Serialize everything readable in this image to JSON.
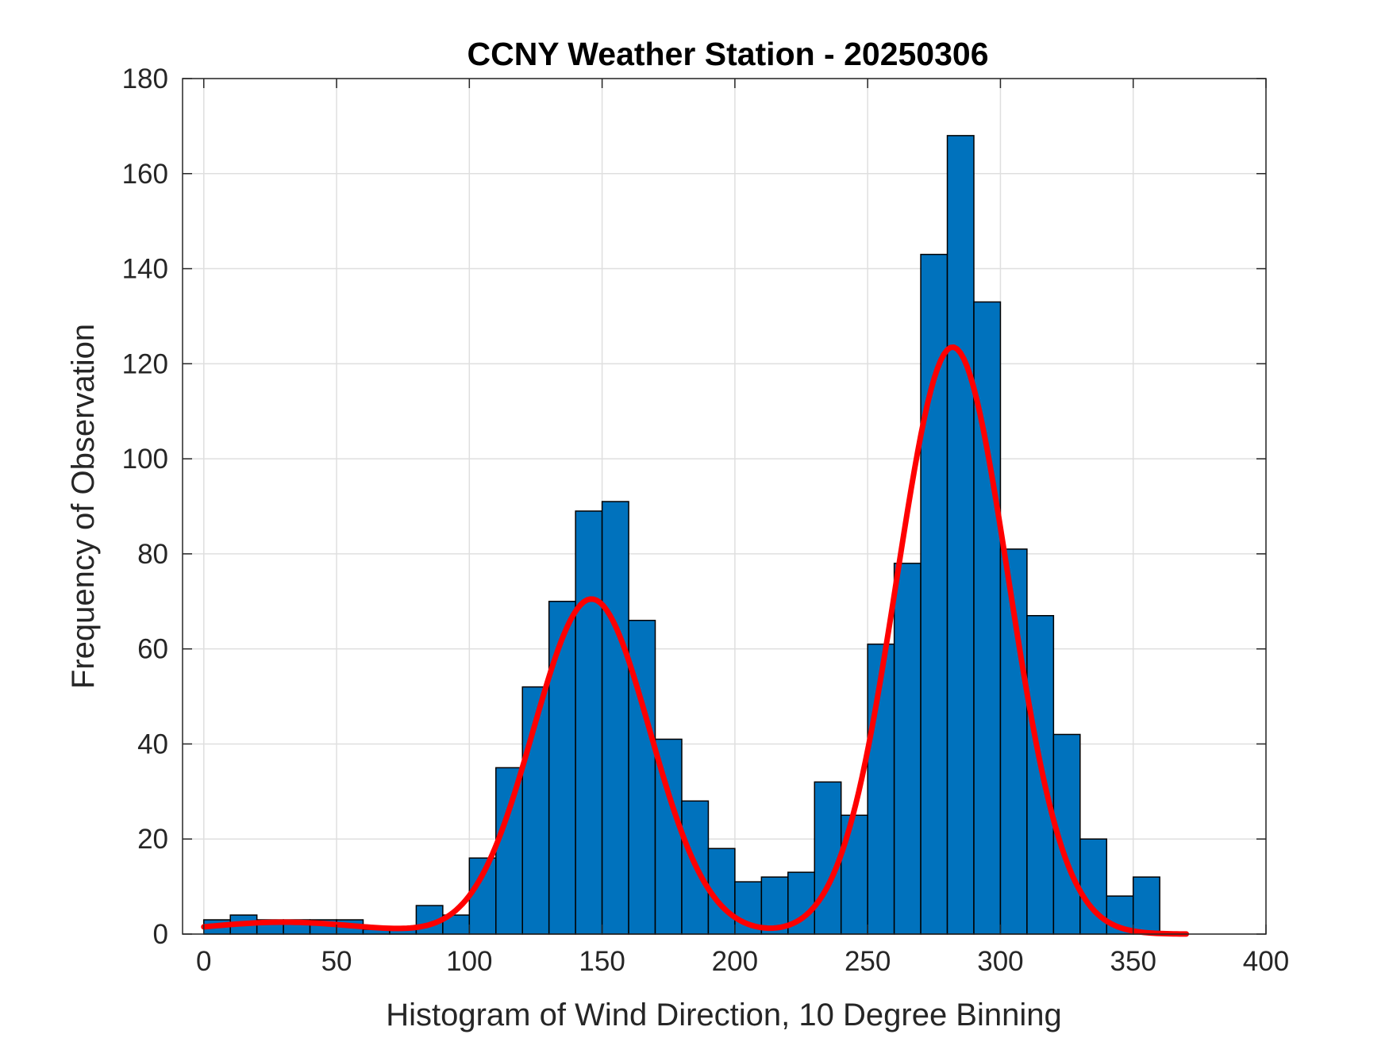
{
  "chart_data": {
    "type": "bar",
    "title": "CCNY Weather Station - 20250306",
    "xlabel": "Histogram of Wind Direction, 10 Degree Binning",
    "ylabel": "Frequency of Observation",
    "xlim": [
      -8,
      400
    ],
    "ylim": [
      0,
      180
    ],
    "x_ticks": [
      0,
      50,
      100,
      150,
      200,
      250,
      300,
      350,
      400
    ],
    "y_ticks": [
      0,
      20,
      40,
      60,
      80,
      100,
      120,
      140,
      160,
      180
    ],
    "grid": true,
    "bin_width": 10,
    "bin_edges_start": [
      0,
      10,
      20,
      30,
      40,
      50,
      60,
      70,
      80,
      90,
      100,
      110,
      120,
      130,
      140,
      150,
      160,
      170,
      180,
      190,
      200,
      210,
      220,
      230,
      240,
      250,
      260,
      270,
      280,
      290,
      300,
      310,
      320,
      330,
      340,
      350
    ],
    "values": [
      3,
      4,
      3,
      3,
      3,
      3,
      1,
      1,
      6,
      4,
      16,
      35,
      52,
      70,
      89,
      91,
      66,
      41,
      28,
      18,
      11,
      12,
      13,
      32,
      25,
      61,
      78,
      143,
      168,
      133,
      81,
      67,
      42,
      20,
      8,
      12
    ],
    "bar_color": "#0072BD",
    "fit_curve": {
      "type": "line",
      "color": "#FF0000",
      "components": [
        {
          "amplitude": 2.5,
          "mean": 30,
          "sigma": 30
        },
        {
          "amplitude": 70.5,
          "mean": 146,
          "sigma": 22
        },
        {
          "amplitude": 123.5,
          "mean": 282,
          "sigma": 21
        }
      ],
      "x_range": [
        0,
        370
      ]
    }
  }
}
